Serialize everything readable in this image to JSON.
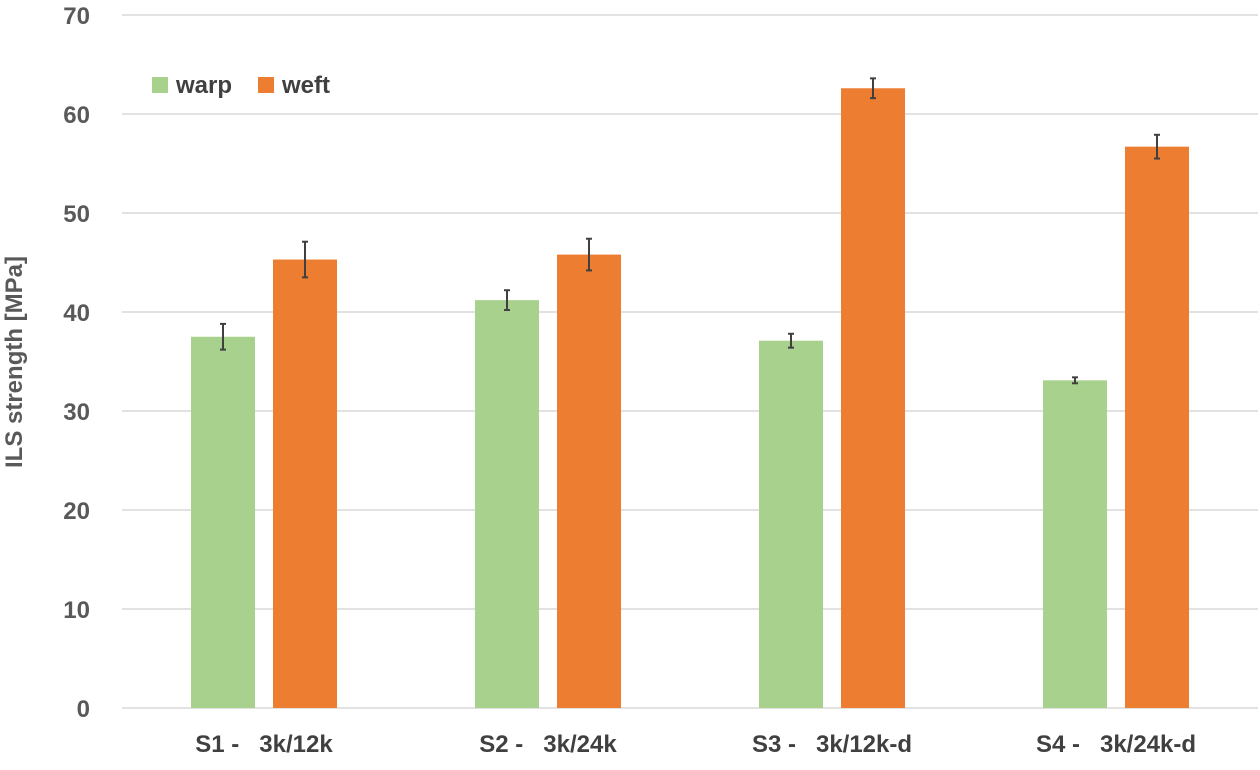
{
  "chart_data": {
    "type": "bar",
    "title": "",
    "xlabel": "",
    "ylabel": "ILS strength [MPa]",
    "ylim": [
      0,
      70
    ],
    "yticks": [
      0,
      10,
      20,
      30,
      40,
      50,
      60,
      70
    ],
    "grid": true,
    "legend_position": "top-left",
    "categories": [
      "S1 -   3k/12k",
      "S2 -   3k/24k",
      "S3 -   3k/12k-d",
      "S4 -   3k/24k-d"
    ],
    "series": [
      {
        "name": "warp",
        "color": "#a9d18e",
        "values": [
          37.5,
          41.2,
          37.1,
          33.1
        ],
        "errors": [
          1.3,
          1.0,
          0.7,
          0.3
        ]
      },
      {
        "name": "weft",
        "color": "#ed7d31",
        "values": [
          45.3,
          45.8,
          62.6,
          56.7
        ],
        "errors": [
          1.8,
          1.6,
          1.0,
          1.2
        ]
      }
    ]
  }
}
